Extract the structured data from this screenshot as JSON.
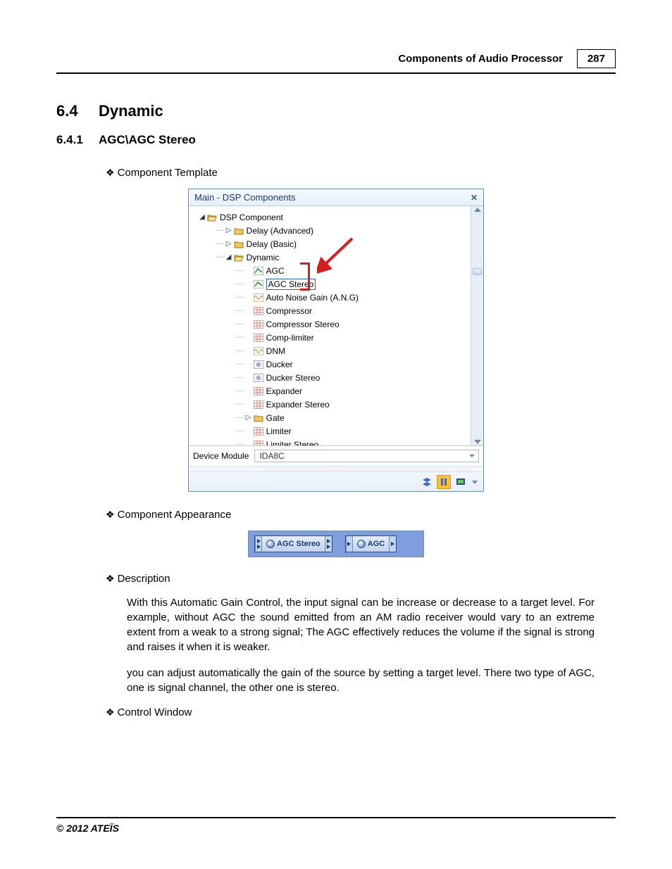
{
  "header": {
    "section": "Components of Audio Processor",
    "page_no": "287"
  },
  "section": {
    "num": "6.4",
    "title": "Dynamic"
  },
  "subsection": {
    "num": "6.4.1",
    "title": "AGC\\AGC Stereo"
  },
  "bullets": {
    "template": "Component Template",
    "appearance": "Component Appearance",
    "description": "Description",
    "control": "Control Window"
  },
  "panel": {
    "title": "Main - DSP Components",
    "root": "DSP Component",
    "tree": [
      {
        "label": "Delay (Advanced)",
        "toggle": "▷",
        "icon": "folder"
      },
      {
        "label": "Delay (Basic)",
        "toggle": "▷",
        "icon": "folder"
      },
      {
        "label": "Dynamic",
        "toggle": "◢",
        "icon": "folder-open",
        "children": [
          {
            "label": "AGC",
            "icon": "agc"
          },
          {
            "label": "AGC Stereo",
            "icon": "agc",
            "selected": true
          },
          {
            "label": "Auto Noise Gain (A.N.G)",
            "icon": "wave"
          },
          {
            "label": "Compressor",
            "icon": "grid"
          },
          {
            "label": "Compressor Stereo",
            "icon": "grid"
          },
          {
            "label": "Comp-limiter",
            "icon": "grid"
          },
          {
            "label": "DNM",
            "icon": "wave"
          },
          {
            "label": "Ducker",
            "icon": "dot"
          },
          {
            "label": "Ducker Stereo",
            "icon": "dot"
          },
          {
            "label": "Expander",
            "icon": "grid"
          },
          {
            "label": "Expander Stereo",
            "icon": "grid"
          },
          {
            "label": "Gate",
            "toggle": "▷",
            "icon": "folder"
          },
          {
            "label": "Limiter",
            "icon": "grid"
          },
          {
            "label": "Limiter Stereo",
            "icon": "grid"
          }
        ]
      }
    ],
    "device_module_label": "Device Module",
    "device_module_value": "IDA8C"
  },
  "components": [
    {
      "label": "AGC Stereo",
      "ports": 2
    },
    {
      "label": "AGC",
      "ports": 1
    }
  ],
  "description": {
    "p1": "With this Automatic Gain Control, the input signal can be increase or decrease to a target level. For example, without AGC the sound emitted from an AM radio receiver would vary to an extreme extent from a weak to a strong signal; The AGC effectively reduces the volume if the signal is strong and raises it when it is weaker.",
    "p2": "you can adjust automatically the gain of the source by setting a target level. There two type of AGC, one is signal channel, the other one is stereo."
  },
  "footer": "© 2012 ATEÏS",
  "colors": {
    "accent_red": "#d21f1f",
    "panel_blue": "#7e9ede",
    "button_blue": "#3a6cc4"
  },
  "icon_svg": {
    "folder": "<svg width='14' height='12'><path d='M1 3h4l1 1h7v7H1z' fill='#f2c555' stroke='#9b7a20'/></svg>",
    "folder-open": "<svg width='14' height='12'><path d='M1 3h4l1 1h7v1H3l-2 6z' fill='#f2c555' stroke='#9b7a20'/><path d='M2 5h11l-2 6H1z' fill='#ffe08a' stroke='#9b7a20'/></svg>",
    "agc": "<svg width='14' height='12'><rect x='0' y='0' width='14' height='12' fill='#fff' stroke='#5a9a5a'/><path d='M2 9 L6 3 L12 8' fill='none' stroke='#2a8a2a' stroke-width='1.5'/></svg>",
    "wave": "<svg width='14' height='12'><rect x='0' y='0' width='14' height='12' fill='#fff' stroke='#b8843a'/><path d='M1 6q2-5 4 0t4 0t4 0' fill='none' stroke='#b8843a'/></svg>",
    "grid": "<svg width='14' height='12'><rect x='0' y='0' width='14' height='12' fill='#fff' stroke='#c7604a'/><path d='M0 4h14M0 8h14M5 0v12M9 0v12' stroke='#c7604a' stroke-width='0.8'/></svg>",
    "dot": "<svg width='14' height='12'><rect x='0' y='0' width='14' height='12' fill='#fff' stroke='#3a6cc4'/><circle cx='7' cy='6' r='2.5' fill='none' stroke='#3a6cc4'/><circle cx='7' cy='6' r='1' fill='#d21f1f'/></svg>"
  }
}
